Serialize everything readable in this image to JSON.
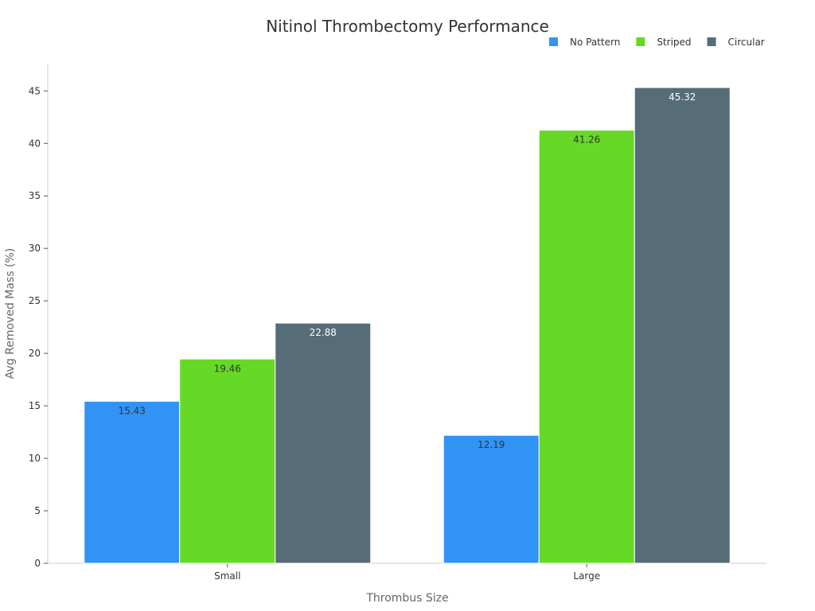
{
  "chart_data": {
    "type": "bar",
    "title": "Nitinol Thrombectomy Performance",
    "xlabel": "Thrombus Size",
    "ylabel": "Avg Removed Mass (%)",
    "categories": [
      "Small",
      "Large"
    ],
    "series": [
      {
        "name": "No Pattern",
        "color": "#3193f5",
        "label_color": "#333333",
        "values": [
          15.43,
          12.19
        ]
      },
      {
        "name": "Striped",
        "color": "#66d926",
        "label_color": "#333333",
        "values": [
          19.46,
          41.26
        ]
      },
      {
        "name": "Circular",
        "color": "#566d78",
        "label_color": "#ffffff",
        "values": [
          22.88,
          45.32
        ]
      }
    ],
    "ylim": [
      0,
      47.6
    ],
    "yticks": [
      0,
      5,
      10,
      15,
      20,
      25,
      30,
      35,
      40,
      45
    ],
    "legend_position": "top-right",
    "grid": false,
    "data_labels": true
  }
}
